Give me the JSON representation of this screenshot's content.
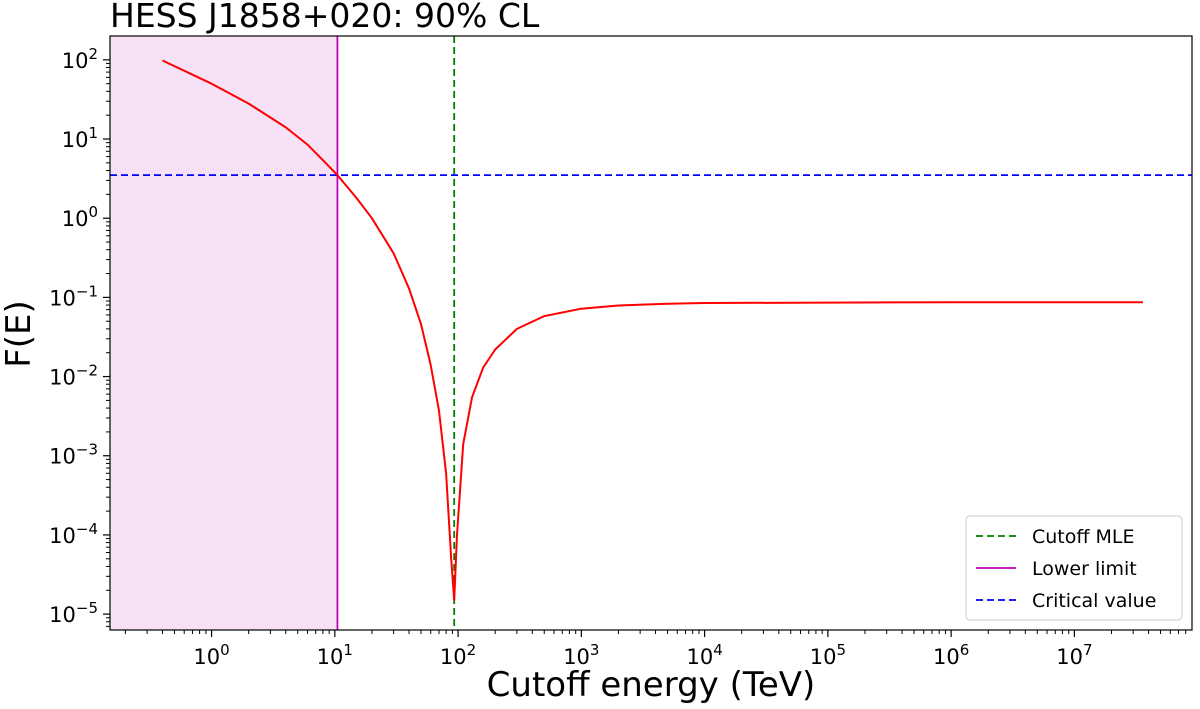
{
  "chart_data": {
    "type": "line",
    "title": "HESS J1858+020: 90% CL",
    "xlabel": "Cutoff energy (TeV)",
    "ylabel": "F(E)",
    "xscale": "log",
    "yscale": "log",
    "xlim": [
      0.15,
      90000000
    ],
    "ylim": [
      6.3e-06,
      200
    ],
    "x_ticks": [
      {
        "base": "10",
        "exp": "0",
        "value": 1
      },
      {
        "base": "10",
        "exp": "1",
        "value": 10
      },
      {
        "base": "10",
        "exp": "2",
        "value": 100
      },
      {
        "base": "10",
        "exp": "3",
        "value": 1000
      },
      {
        "base": "10",
        "exp": "4",
        "value": 10000
      },
      {
        "base": "10",
        "exp": "5",
        "value": 100000
      },
      {
        "base": "10",
        "exp": "6",
        "value": 1000000
      },
      {
        "base": "10",
        "exp": "7",
        "value": 10000000
      }
    ],
    "y_ticks": [
      {
        "base": "10",
        "exp": "2",
        "value": 100
      },
      {
        "base": "10",
        "exp": "1",
        "value": 10
      },
      {
        "base": "10",
        "exp": "0",
        "value": 1
      },
      {
        "base": "10",
        "exp": "−1",
        "value": 0.1
      },
      {
        "base": "10",
        "exp": "−2",
        "value": 0.01
      },
      {
        "base": "10",
        "exp": "−3",
        "value": 0.001
      },
      {
        "base": "10",
        "exp": "−4",
        "value": 0.0001
      },
      {
        "base": "10",
        "exp": "−5",
        "value": 1e-05
      }
    ],
    "grid": false,
    "legend_position": "bottom-right",
    "series": [
      {
        "name": "",
        "color": "#ff0000",
        "style": "solid",
        "x": [
          0.4,
          1,
          2,
          4,
          6,
          8,
          10.5,
          15,
          20,
          30,
          40,
          50,
          60,
          70,
          80,
          88,
          93,
          98,
          110,
          130,
          160,
          200,
          300,
          500,
          1000,
          2000,
          5000,
          10000,
          100000,
          1000000,
          36000000
        ],
        "y": [
          98,
          50,
          28,
          14,
          8.5,
          5.4,
          3.5,
          1.8,
          1.0,
          0.36,
          0.13,
          0.046,
          0.014,
          0.0037,
          0.0006,
          5e-05,
          1.5e-05,
          0.0001,
          0.0014,
          0.0055,
          0.013,
          0.022,
          0.04,
          0.058,
          0.072,
          0.079,
          0.083,
          0.085,
          0.086,
          0.087,
          0.087
        ]
      }
    ],
    "vlines": [
      {
        "label": "Cutoff MLE",
        "x": 93,
        "color": "#008000",
        "style": "dashed"
      },
      {
        "label": "Lower limit",
        "x": 10.5,
        "color": "#bf00bf",
        "style": "solid"
      }
    ],
    "hlines": [
      {
        "label": "Critical value",
        "y": 3.5,
        "color": "#0000ff",
        "style": "dashed"
      }
    ],
    "shaded_region": {
      "x_from": 0.15,
      "x_to": 10.5,
      "color": "#f7e1f7"
    },
    "legend": [
      {
        "label": "Cutoff MLE",
        "color": "#008000",
        "style": "dashed"
      },
      {
        "label": "Lower limit",
        "color": "#bf00bf",
        "style": "solid"
      },
      {
        "label": "Critical value",
        "color": "#0000ff",
        "style": "dashed"
      }
    ]
  }
}
